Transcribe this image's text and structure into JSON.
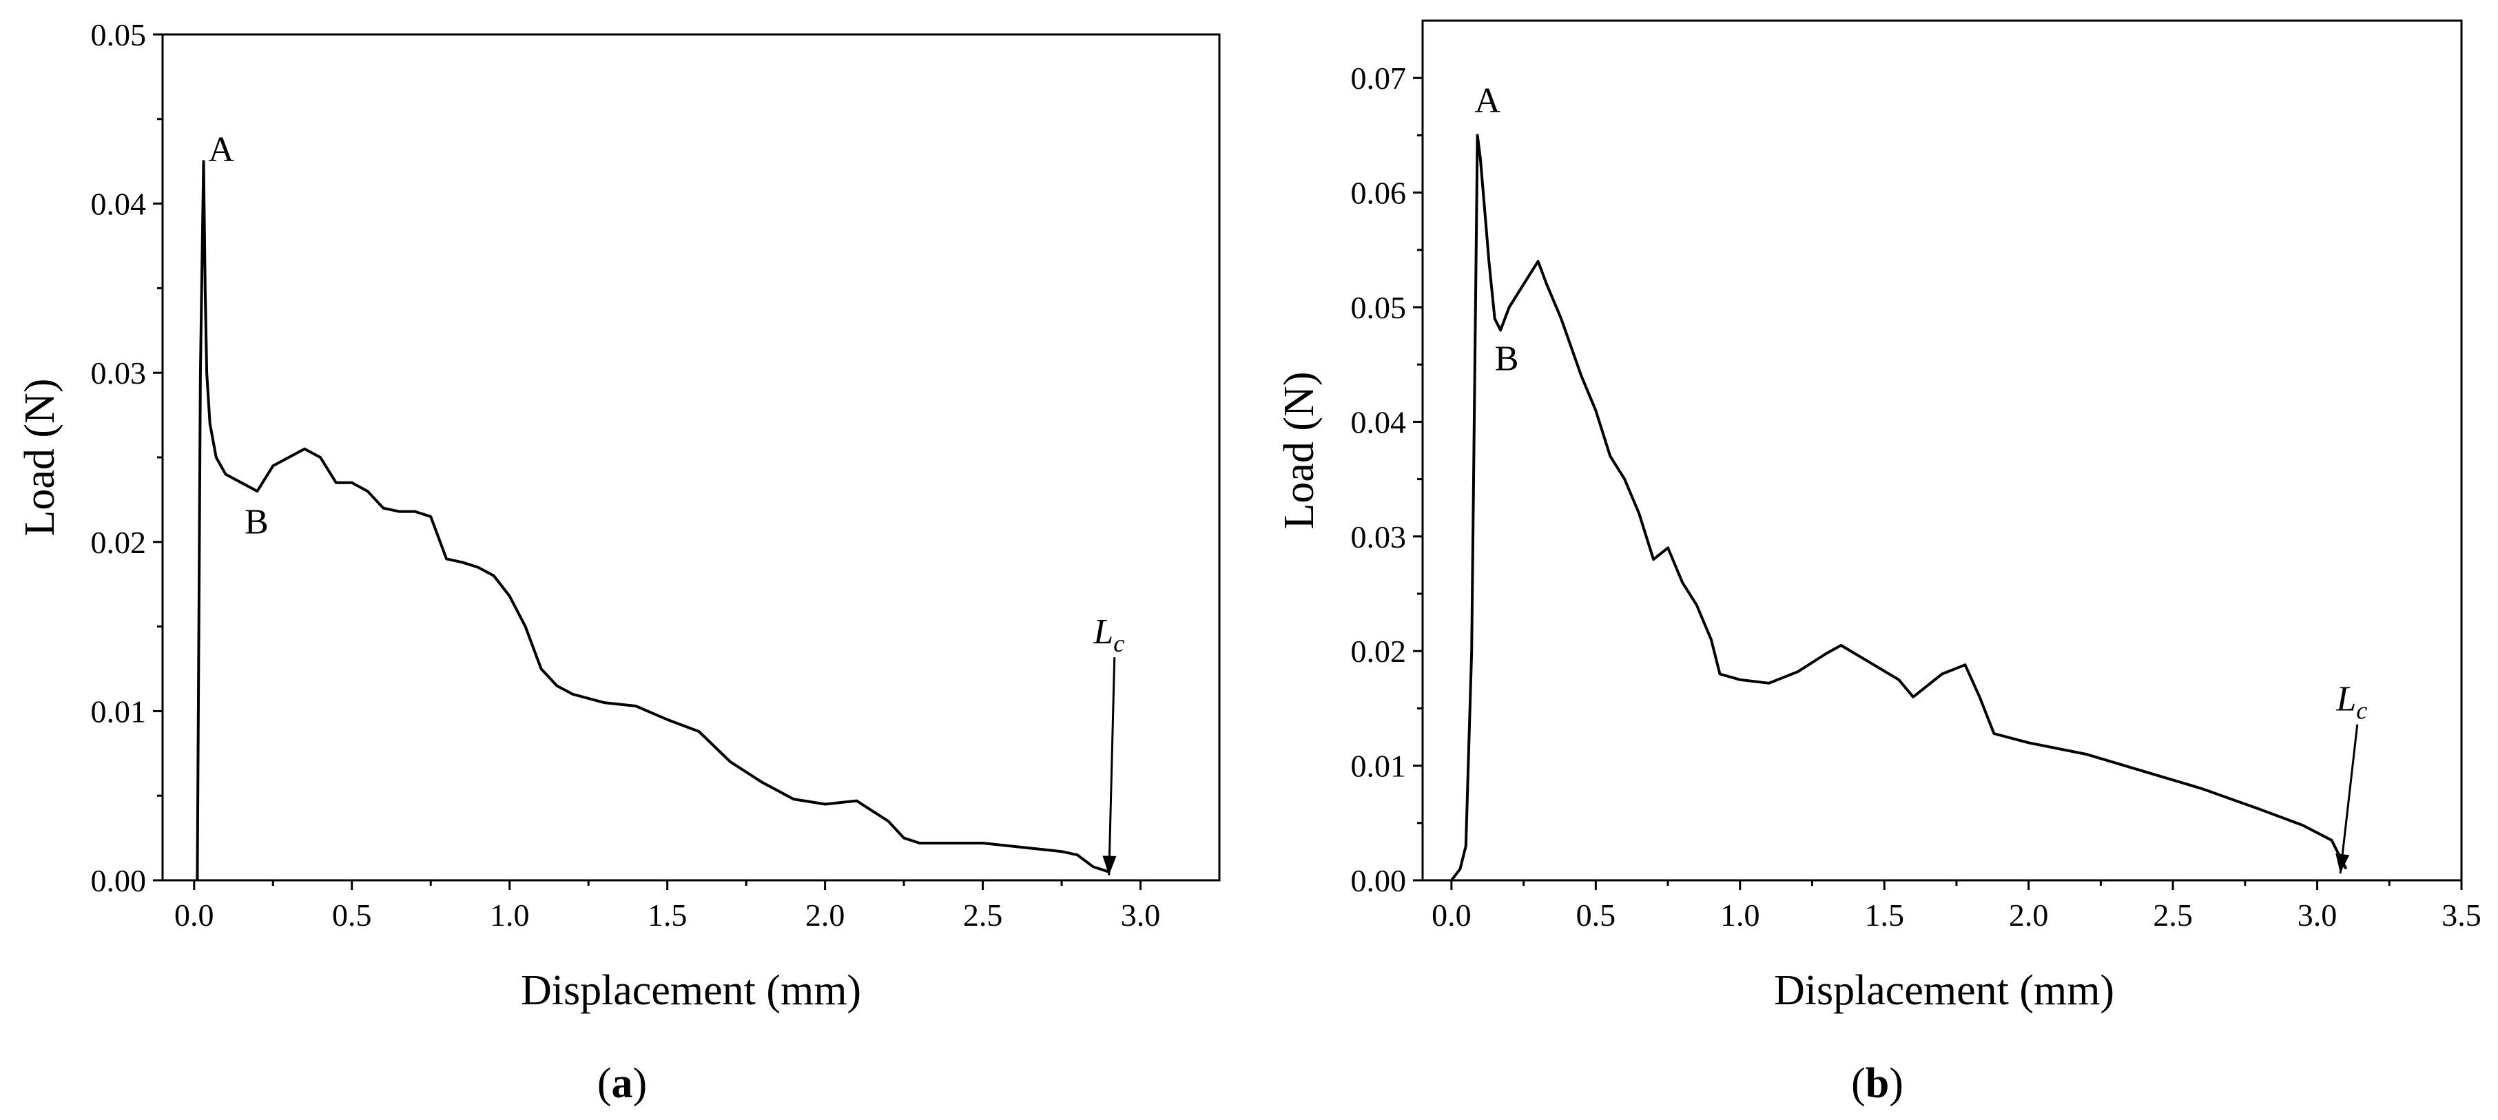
{
  "chart_data": [
    {
      "id": "a",
      "type": "line",
      "panel_label": "(a)",
      "panel_label_letter": "a",
      "xlabel": "Displacement (mm)",
      "ylabel": "Load (N)",
      "xlim": [
        -0.1,
        3.25
      ],
      "ylim": [
        0,
        0.05
      ],
      "xticks": [
        0.0,
        0.5,
        1.0,
        1.5,
        2.0,
        2.5,
        3.0
      ],
      "xtick_labels": [
        "0.0",
        "0.5",
        "1.0",
        "1.5",
        "2.0",
        "2.5",
        "3.0"
      ],
      "yticks": [
        0.0,
        0.01,
        0.02,
        0.03,
        0.04,
        0.05
      ],
      "ytick_labels": [
        "0.00",
        "0.01",
        "0.02",
        "0.03",
        "0.04",
        "0.05"
      ],
      "series": [
        {
          "name": "Load",
          "x": [
            0.01,
            0.02,
            0.03,
            0.035,
            0.04,
            0.05,
            0.07,
            0.1,
            0.15,
            0.2,
            0.25,
            0.3,
            0.35,
            0.4,
            0.45,
            0.5,
            0.55,
            0.6,
            0.65,
            0.7,
            0.75,
            0.8,
            0.85,
            0.9,
            0.95,
            1.0,
            1.05,
            1.1,
            1.15,
            1.2,
            1.3,
            1.4,
            1.5,
            1.6,
            1.7,
            1.8,
            1.9,
            2.0,
            2.1,
            2.2,
            2.25,
            2.3,
            2.4,
            2.5,
            2.6,
            2.7,
            2.75,
            2.8,
            2.85,
            2.9
          ],
          "y": [
            0.0,
            0.03,
            0.0425,
            0.035,
            0.03,
            0.027,
            0.025,
            0.024,
            0.0235,
            0.023,
            0.0245,
            0.025,
            0.0255,
            0.025,
            0.0235,
            0.0235,
            0.023,
            0.022,
            0.0218,
            0.0218,
            0.0215,
            0.019,
            0.0188,
            0.0185,
            0.018,
            0.0168,
            0.015,
            0.0125,
            0.0115,
            0.011,
            0.0105,
            0.0103,
            0.0095,
            0.0088,
            0.007,
            0.0058,
            0.0048,
            0.0045,
            0.0047,
            0.0035,
            0.0025,
            0.0022,
            0.0022,
            0.0022,
            0.002,
            0.0018,
            0.0017,
            0.0015,
            0.0008,
            0.0005
          ]
        }
      ],
      "annotations": [
        {
          "text": "A",
          "x": 0.045,
          "y": 0.0425
        },
        {
          "text": "B",
          "x": 0.16,
          "y": 0.0205
        },
        {
          "text": "L",
          "subscript": "c",
          "x": 2.9,
          "y": 0.014,
          "arrow_to": [
            2.9,
            0.0003
          ]
        }
      ]
    },
    {
      "id": "b",
      "type": "line",
      "panel_label": "(b)",
      "panel_label_letter": "b",
      "xlabel": "Displacement (mm)",
      "ylabel": "Load (N)",
      "xlim": [
        -0.1,
        3.5
      ],
      "ylim": [
        0,
        0.075
      ],
      "xticks": [
        0.0,
        0.5,
        1.0,
        1.5,
        2.0,
        2.5,
        3.0,
        3.5
      ],
      "xtick_labels": [
        "0.0",
        "0.5",
        "1.0",
        "1.5",
        "2.0",
        "2.5",
        "3.0",
        "3.5"
      ],
      "yticks": [
        0.0,
        0.01,
        0.02,
        0.03,
        0.04,
        0.05,
        0.06,
        0.07
      ],
      "ytick_labels": [
        "0.00",
        "0.01",
        "0.02",
        "0.03",
        "0.04",
        "0.05",
        "0.06",
        "0.07"
      ],
      "series": [
        {
          "name": "Load",
          "x": [
            0.0,
            0.03,
            0.05,
            0.07,
            0.09,
            0.1,
            0.12,
            0.13,
            0.15,
            0.17,
            0.2,
            0.25,
            0.3,
            0.33,
            0.38,
            0.45,
            0.5,
            0.55,
            0.6,
            0.65,
            0.7,
            0.75,
            0.8,
            0.85,
            0.9,
            0.93,
            1.0,
            1.1,
            1.2,
            1.3,
            1.35,
            1.45,
            1.55,
            1.6,
            1.7,
            1.78,
            1.83,
            1.88,
            2.0,
            2.2,
            2.4,
            2.6,
            2.8,
            2.95,
            3.05,
            3.1
          ],
          "y": [
            0.0,
            0.001,
            0.003,
            0.02,
            0.065,
            0.063,
            0.057,
            0.054,
            0.049,
            0.048,
            0.05,
            0.052,
            0.054,
            0.052,
            0.049,
            0.044,
            0.041,
            0.037,
            0.035,
            0.032,
            0.028,
            0.029,
            0.026,
            0.024,
            0.021,
            0.018,
            0.0175,
            0.0172,
            0.0182,
            0.0198,
            0.0205,
            0.019,
            0.0175,
            0.016,
            0.018,
            0.0188,
            0.016,
            0.0128,
            0.012,
            0.011,
            0.0095,
            0.008,
            0.0062,
            0.0048,
            0.0035,
            0.001
          ]
        }
      ],
      "annotations": [
        {
          "text": "A",
          "x": 0.08,
          "y": 0.067
        },
        {
          "text": "B",
          "x": 0.15,
          "y": 0.0445
        },
        {
          "text": "L",
          "subscript": "c",
          "x": 3.12,
          "y": 0.0148,
          "arrow_to": [
            3.08,
            0.0006
          ]
        }
      ]
    }
  ]
}
